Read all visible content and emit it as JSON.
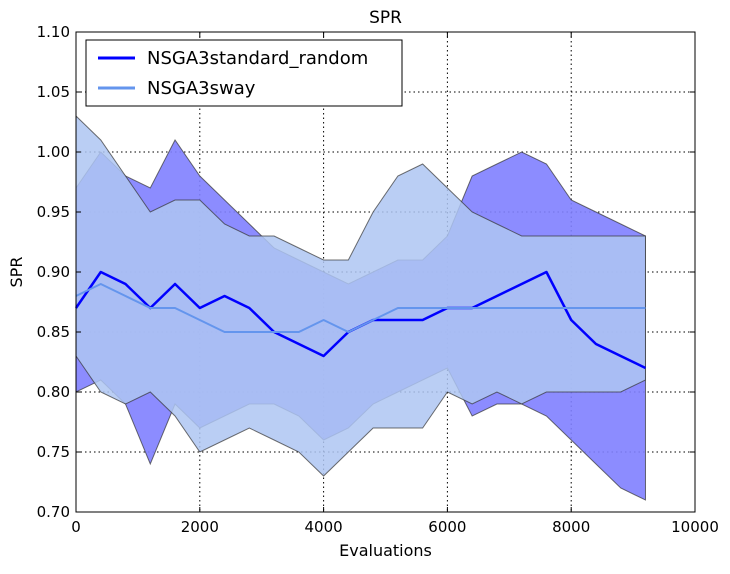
{
  "chart_data": {
    "type": "line",
    "title": "SPR",
    "xlabel": "Evaluations",
    "ylabel": "SPR",
    "xlim": [
      0,
      10000
    ],
    "ylim": [
      0.7,
      1.1
    ],
    "x_ticks": [
      "0",
      "2000",
      "4000",
      "6000",
      "8000",
      "10000"
    ],
    "y_ticks": [
      "0.70",
      "0.75",
      "0.80",
      "0.85",
      "0.90",
      "0.95",
      "1.00",
      "1.05",
      "1.10"
    ],
    "grid": true,
    "legend": {
      "position": "top-left"
    },
    "x": [
      0,
      400,
      800,
      1200,
      1600,
      2000,
      2400,
      2800,
      3200,
      3600,
      4000,
      4400,
      4800,
      5200,
      5600,
      6000,
      6400,
      6800,
      7200,
      7600,
      8000,
      8400,
      8800,
      9200
    ],
    "series": [
      {
        "name": "NSGA3standard_random",
        "color": "#0000ff",
        "band_color": "#8080ff",
        "values": [
          0.87,
          0.9,
          0.89,
          0.87,
          0.89,
          0.87,
          0.88,
          0.87,
          0.85,
          0.84,
          0.83,
          0.85,
          0.86,
          0.86,
          0.86,
          0.87,
          0.87,
          0.88,
          0.89,
          0.9,
          0.86,
          0.84,
          0.83,
          0.82
        ],
        "upper": [
          0.97,
          1.0,
          0.98,
          0.97,
          1.01,
          0.98,
          0.96,
          0.94,
          0.92,
          0.91,
          0.9,
          0.89,
          0.9,
          0.91,
          0.91,
          0.93,
          0.98,
          0.99,
          1.0,
          0.99,
          0.96,
          0.95,
          0.94,
          0.93
        ],
        "lower": [
          0.8,
          0.81,
          0.79,
          0.74,
          0.79,
          0.77,
          0.78,
          0.79,
          0.79,
          0.78,
          0.76,
          0.77,
          0.79,
          0.8,
          0.81,
          0.82,
          0.78,
          0.79,
          0.79,
          0.78,
          0.76,
          0.74,
          0.72,
          0.71
        ]
      },
      {
        "name": "NSGA3sway",
        "color": "#6495ed",
        "band_color": "#aec6f2",
        "values": [
          0.88,
          0.89,
          0.88,
          0.87,
          0.87,
          0.86,
          0.85,
          0.85,
          0.85,
          0.85,
          0.86,
          0.85,
          0.86,
          0.87,
          0.87,
          0.87,
          0.87,
          0.87,
          0.87,
          0.87,
          0.87,
          0.87,
          0.87,
          0.87
        ],
        "upper": [
          1.03,
          1.01,
          0.98,
          0.95,
          0.96,
          0.96,
          0.94,
          0.93,
          0.93,
          0.92,
          0.91,
          0.91,
          0.95,
          0.98,
          0.99,
          0.97,
          0.95,
          0.94,
          0.93,
          0.93,
          0.93,
          0.93,
          0.93,
          0.93
        ],
        "lower": [
          0.83,
          0.8,
          0.79,
          0.8,
          0.78,
          0.75,
          0.76,
          0.77,
          0.76,
          0.75,
          0.73,
          0.75,
          0.77,
          0.77,
          0.77,
          0.8,
          0.79,
          0.8,
          0.79,
          0.8,
          0.8,
          0.8,
          0.8,
          0.81
        ]
      }
    ]
  }
}
